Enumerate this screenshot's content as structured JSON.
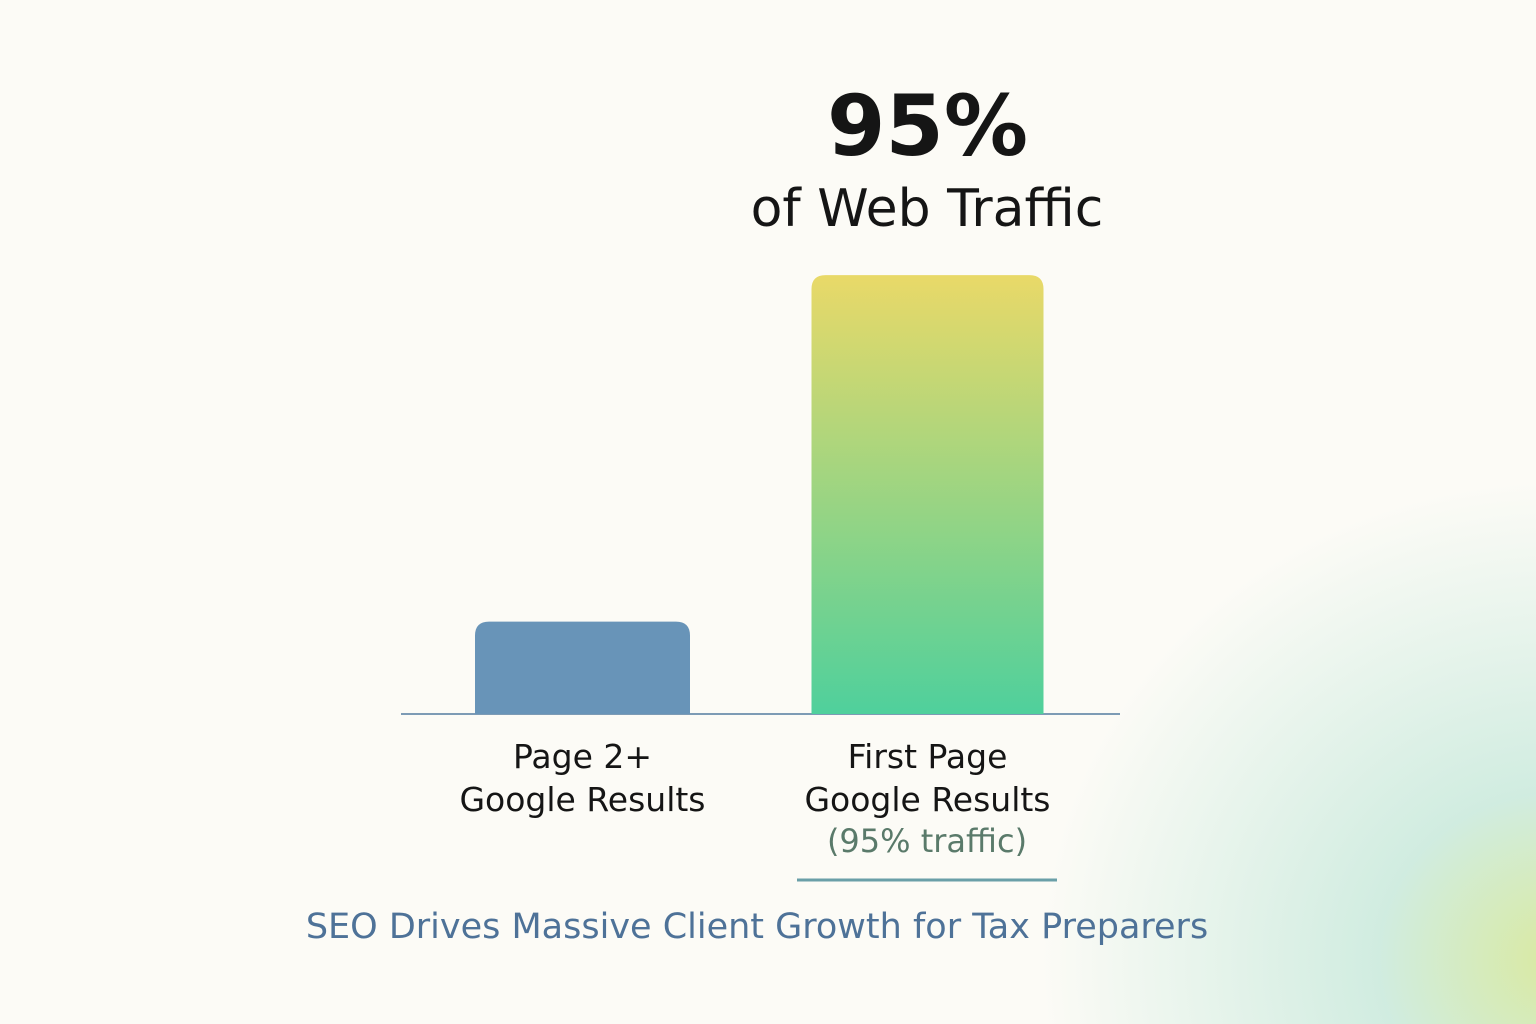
{
  "chart_data": {
    "type": "bar",
    "title": "SEO Drives Massive Client Growth for Tax Preparers",
    "annotation": "of Web Traffic",
    "category_note": "(95% traffic)",
    "categories": [
      "Page 2+\nGoogle Results",
      "First Page\nGoogle Results"
    ],
    "values": [
      20,
      95
    ],
    "value_labels": [
      null,
      "95%"
    ],
    "colors": [
      "#6894b8",
      "#4fd09c"
    ],
    "highlight_color": "#e9d968",
    "ylim": [
      0,
      100
    ]
  }
}
